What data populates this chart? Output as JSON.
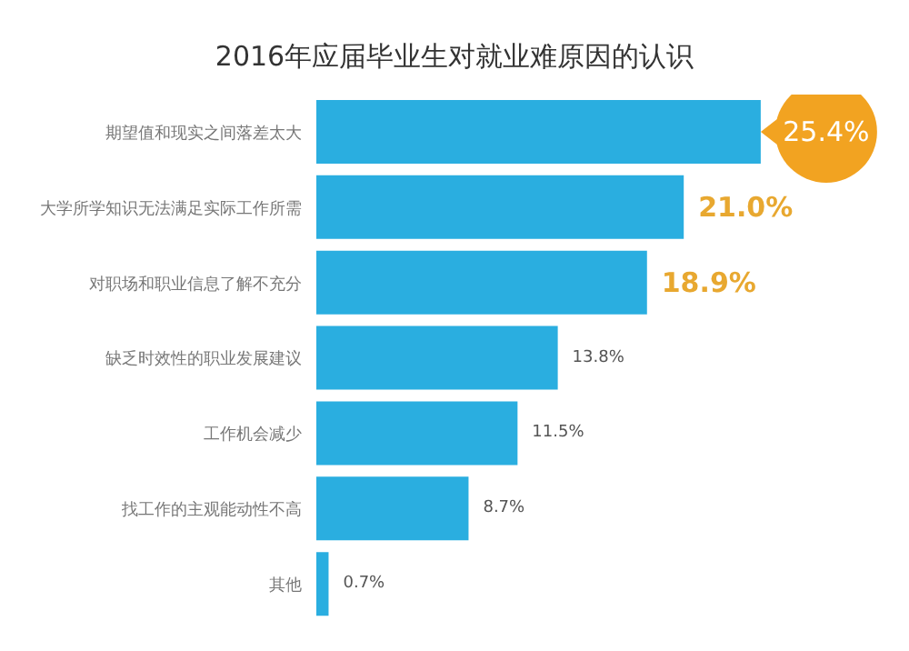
{
  "chart_data": {
    "type": "bar",
    "orientation": "horizontal",
    "title": "2016年应届毕业生对就业难原因的认识",
    "categories": [
      "期望值和现实之间落差太大",
      "大学所学知识无法满足实际工作所需",
      "对职场和职业信息了解不充分",
      "缺乏时效性的职业发展建议",
      "工作机会减少",
      "找工作的主观能动性不高",
      "其他"
    ],
    "values": [
      25.4,
      21.0,
      18.9,
      13.8,
      11.5,
      8.7,
      0.7
    ],
    "value_labels": [
      "25.4%",
      "21.0%",
      "18.9%",
      "13.8%",
      "11.5%",
      "8.7%",
      "0.7%"
    ],
    "color": "#2aaee0",
    "grid": false,
    "legend": false
  }
}
